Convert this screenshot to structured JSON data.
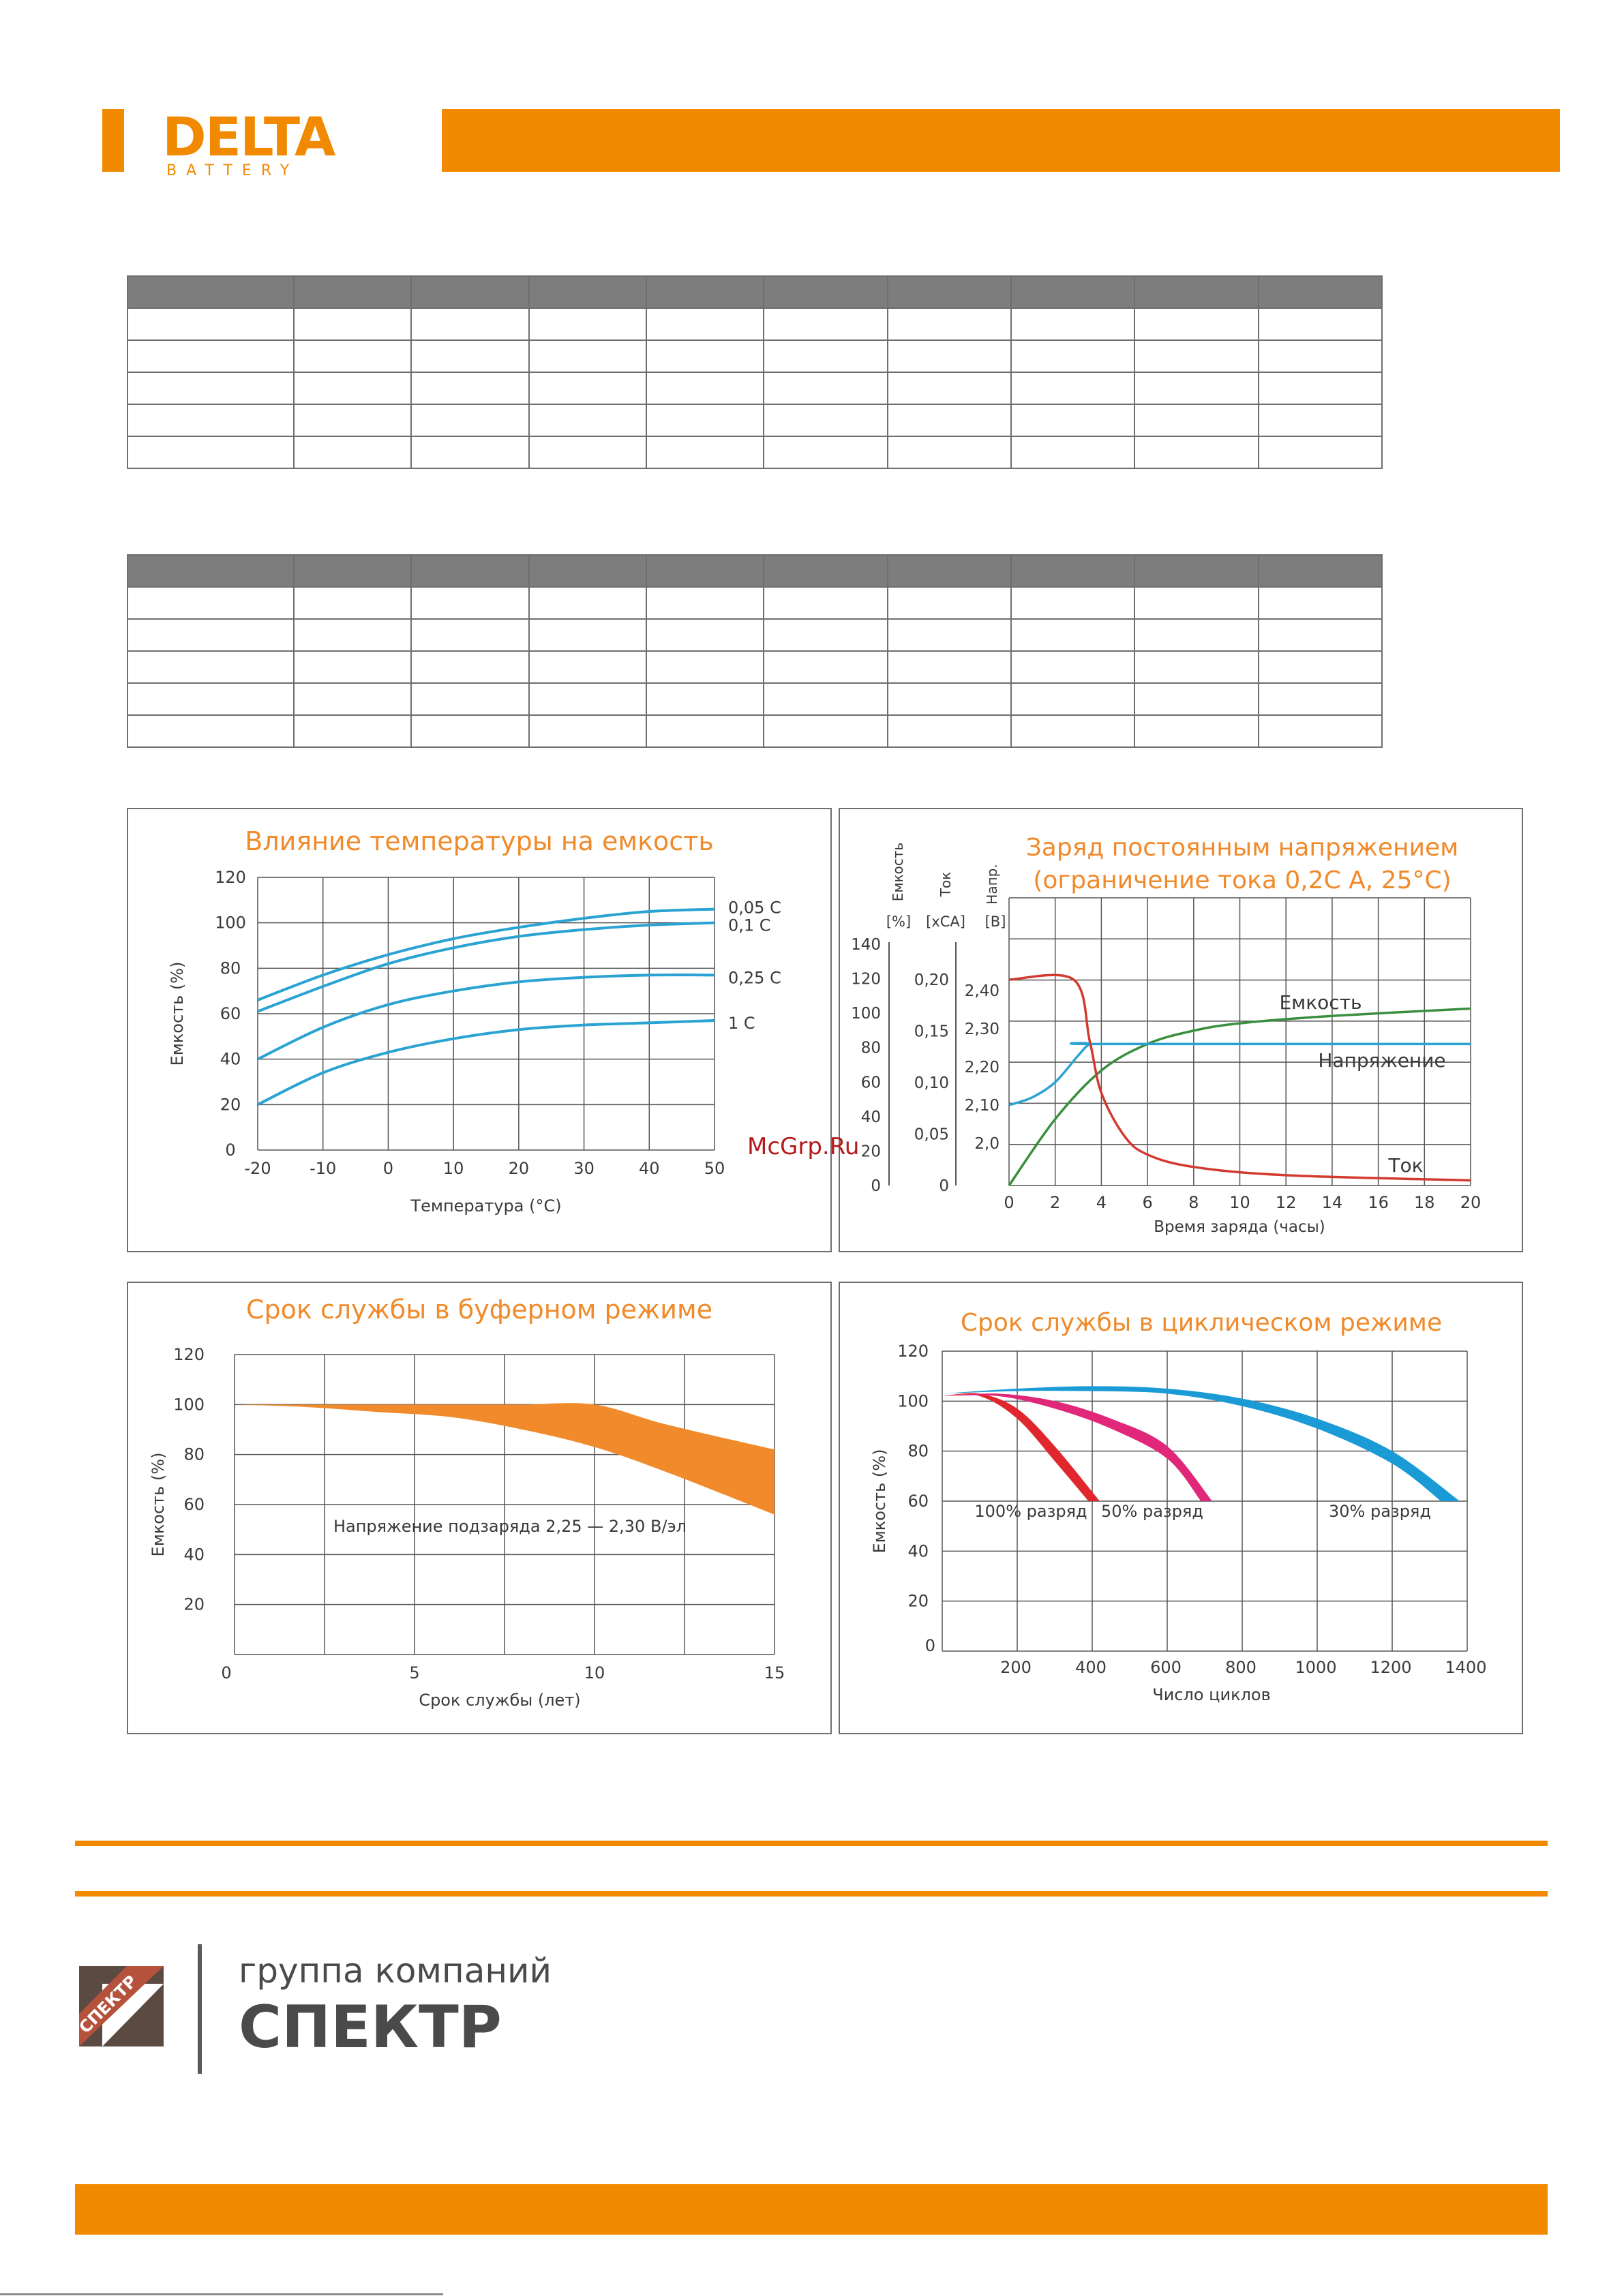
{
  "header": {
    "brand": "DELTA",
    "brand_sub": "BATTERY",
    "accent": "#f18a00"
  },
  "tables": {
    "rows": 6,
    "cols": 10
  },
  "watermark": "McGrp.Ru",
  "charts": [
    {
      "type": "line",
      "title": "Влияние температуры на емкость",
      "xlabel": "Температура (°С)",
      "ylabel": "Емкость (%)",
      "xlim": [
        -20,
        50
      ],
      "ylim": [
        0,
        120
      ],
      "x_ticks": [
        "-20",
        "-10",
        "0",
        "10",
        "20",
        "30",
        "40",
        "50"
      ],
      "y_ticks": [
        "0",
        "20",
        "40",
        "60",
        "80",
        "100",
        "120"
      ],
      "color": "#2aa3d2",
      "series": [
        {
          "name": "0,05 C",
          "x": [
            -20,
            -10,
            0,
            10,
            20,
            30,
            40,
            50
          ],
          "values": [
            66,
            77,
            86,
            93,
            98,
            102,
            105,
            106
          ]
        },
        {
          "name": "0,1 C",
          "x": [
            -20,
            -10,
            0,
            10,
            20,
            30,
            40,
            50
          ],
          "values": [
            61,
            72,
            82,
            89,
            94,
            97,
            99,
            100
          ]
        },
        {
          "name": "0,25 C",
          "x": [
            -20,
            -10,
            0,
            10,
            20,
            30,
            40,
            50
          ],
          "values": [
            40,
            54,
            64,
            70,
            74,
            76,
            77,
            77
          ]
        },
        {
          "name": "1 C",
          "x": [
            -20,
            -10,
            0,
            10,
            20,
            30,
            40,
            50
          ],
          "values": [
            20,
            34,
            43,
            49,
            53,
            55,
            56,
            57
          ]
        }
      ]
    },
    {
      "type": "line",
      "title_lines": [
        "Заряд постоянным напряжением",
        "(ограничение тока 0,2С А, 25°С)"
      ],
      "xlabel": "Время заряда (часы)",
      "axis_headers": {
        "capacity": "Емкость",
        "current": "Ток",
        "voltage": "Напр."
      },
      "axis_units": {
        "capacity": "[%]",
        "current": "[xCA]",
        "voltage": "[В]"
      },
      "x_ticks": [
        "0",
        "2",
        "4",
        "6",
        "8",
        "10",
        "12",
        "14",
        "16",
        "18",
        "20"
      ],
      "capacity_ticks": [
        "0",
        "20",
        "40",
        "60",
        "80",
        "100",
        "120",
        "140"
      ],
      "current_ticks": [
        "0",
        "0,05",
        "0,10",
        "0,15",
        "0,20"
      ],
      "voltage_ticks": [
        "2,0",
        "2,10",
        "2,20",
        "2,30",
        "2,40"
      ],
      "xlim": [
        0,
        20
      ],
      "series": [
        {
          "name": "Емкость",
          "color": "#3a8f3e",
          "x": [
            0,
            2,
            4,
            6,
            8,
            10,
            14,
            20
          ],
          "values": [
            0,
            45,
            78,
            96,
            105,
            110,
            115,
            120
          ]
        },
        {
          "name": "Напряжение",
          "color": "#2aa3d2",
          "x": [
            0,
            1,
            2,
            3,
            3.5,
            4,
            20
          ],
          "values": [
            2.1,
            2.12,
            2.16,
            2.23,
            2.26,
            2.26,
            2.26
          ]
        },
        {
          "name": "Ток",
          "color": "#d23a2f",
          "x": [
            0,
            2.8,
            3.5,
            4,
            5,
            6,
            8,
            12,
            20
          ],
          "values": [
            0.2,
            0.2,
            0.14,
            0.09,
            0.048,
            0.03,
            0.018,
            0.01,
            0.005
          ]
        }
      ]
    },
    {
      "type": "area",
      "title": "Срок службы в буферном режиме",
      "xlabel": "Срок службы (лет)",
      "ylabel": "Емкость (%)",
      "xlim": [
        0,
        15
      ],
      "ylim": [
        0,
        120
      ],
      "x_ticks": [
        "0",
        "5",
        "10",
        "15"
      ],
      "y_ticks": [
        "20",
        "40",
        "60",
        "80",
        "100",
        "120"
      ],
      "annotation": "Напряжение подзаряда 2,25 — 2,30 В/эл",
      "color": "#f08a2a",
      "upper": {
        "x": [
          0,
          2,
          4,
          6,
          8,
          10,
          12,
          15
        ],
        "values": [
          100,
          100,
          100,
          100,
          100,
          100,
          92,
          82
        ]
      },
      "lower": {
        "x": [
          0,
          2,
          4,
          6,
          8,
          10,
          12,
          15
        ],
        "values": [
          100,
          99,
          97,
          95,
          90,
          83,
          73,
          56
        ]
      }
    },
    {
      "type": "area",
      "title": "Срок службы в циклическом режиме",
      "xlabel": "Число циклов",
      "ylabel": "Емкость (%)",
      "xlim": [
        0,
        1400
      ],
      "ylim": [
        0,
        120
      ],
      "x_ticks": [
        "0",
        "200",
        "400",
        "600",
        "800",
        "1000",
        "1200",
        "1400"
      ],
      "y_ticks": [
        "20",
        "40",
        "60",
        "80",
        "100",
        "120"
      ],
      "bands": [
        {
          "name": "100% разряд",
          "color": "#e0272d",
          "upper": {
            "x": [
              0,
              100,
              200,
              300,
              420
            ],
            "values": [
              102,
              103,
              97,
              82,
              60
            ]
          },
          "lower": {
            "x": [
              0,
              100,
              200,
              300,
              390
            ],
            "values": [
              102,
              102,
              93,
              76,
              60
            ]
          }
        },
        {
          "name": "50% разряд",
          "color": "#e0277a",
          "upper": {
            "x": [
              0,
              150,
              300,
              450,
              600,
              720
            ],
            "values": [
              102,
              103,
              100,
              93,
              82,
              60
            ]
          },
          "lower": {
            "x": [
              0,
              150,
              300,
              450,
              600,
              690
            ],
            "values": [
              102,
              102,
              97,
              89,
              77,
              60
            ]
          }
        },
        {
          "name": "30% разряд",
          "color": "#1b9bd6",
          "upper": {
            "x": [
              0,
              200,
              400,
              600,
              800,
              1000,
              1200,
              1380
            ],
            "values": [
              103,
              105,
              106,
              105,
              101,
              93,
              80,
              60
            ]
          },
          "lower": {
            "x": [
              0,
              200,
              400,
              600,
              800,
              1000,
              1200,
              1330
            ],
            "values": [
              103,
              104,
              104,
              103,
              98,
              89,
              75,
              60
            ]
          }
        }
      ]
    }
  ],
  "footer": {
    "company_prefix": "группа компаний",
    "company_name": "СПЕКТР",
    "logo_text": "СПЕКТР"
  }
}
